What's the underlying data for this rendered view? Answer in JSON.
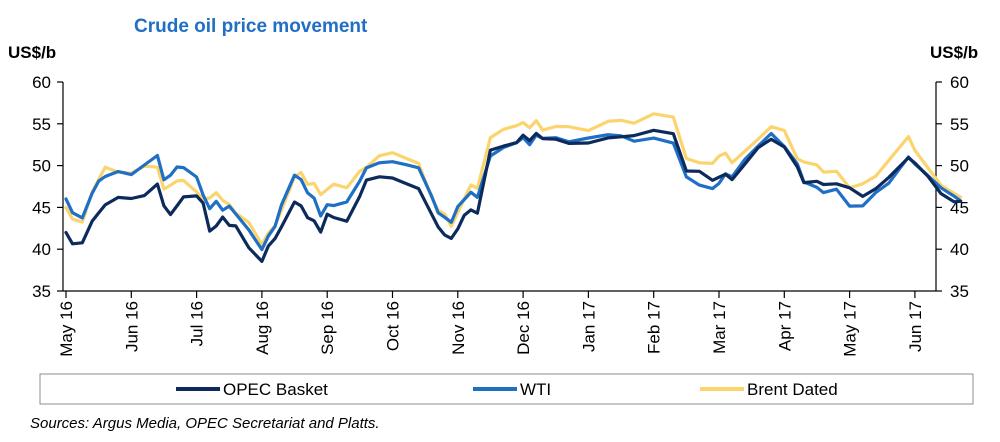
{
  "chart_data": {
    "type": "line",
    "title": "Crude oil price movement",
    "ylabel_left": "US$/b",
    "ylabel_right": "US$/b",
    "ylim": [
      35,
      60
    ],
    "yticks": [
      35,
      40,
      45,
      50,
      55,
      60
    ],
    "grid": false,
    "legend_position": "bottom",
    "source_note": "Sources: Argus Media, OPEC Secretariat and Platts.",
    "x_tick_labels": [
      "May 16",
      "Jun 16",
      "Jul 16",
      "Aug 16",
      "Sep 16",
      "Oct 16",
      "Nov 16",
      "Dec 16",
      "Jan 17",
      "Feb 17",
      "Mar 17",
      "Apr 17",
      "May 17",
      "Jun 17"
    ],
    "x_months_span": [
      0,
      13.7
    ],
    "series": [
      {
        "name": "OPEC Basket",
        "color": "#0d2a5c",
        "x": [
          0,
          0.1,
          0.25,
          0.4,
          0.5,
          0.6,
          0.8,
          1.0,
          1.2,
          1.4,
          1.5,
          1.6,
          1.7,
          1.8,
          2.0,
          2.1,
          2.2,
          2.3,
          2.4,
          2.5,
          2.6,
          2.8,
          3.0,
          3.1,
          3.2,
          3.3,
          3.5,
          3.6,
          3.7,
          3.8,
          3.9,
          4.0,
          4.1,
          4.3,
          4.5,
          4.6,
          4.8,
          5.0,
          5.2,
          5.4,
          5.6,
          5.7,
          5.8,
          5.9,
          6.0,
          6.1,
          6.2,
          6.3,
          6.5,
          6.7,
          6.9,
          7.0,
          7.1,
          7.2,
          7.3,
          7.5,
          7.7,
          8.0,
          8.3,
          8.5,
          8.7,
          9.0,
          9.3,
          9.5,
          9.7,
          9.9,
          10.0,
          10.1,
          10.2,
          10.4,
          10.6,
          10.8,
          11.0,
          11.2,
          11.3,
          11.5,
          11.6,
          11.8,
          12.0,
          12.2,
          12.4,
          12.6,
          12.9,
          13.0,
          13.2,
          13.4,
          13.6,
          13.7
        ],
        "values": [
          42,
          40.5,
          40.5,
          43,
          44,
          45,
          46,
          46,
          46.5,
          48,
          45.5,
          44.5,
          45.5,
          46.5,
          46.5,
          45.5,
          42,
          42.5,
          43.5,
          42.5,
          42.5,
          40,
          38.5,
          40.5,
          41.5,
          43,
          46,
          45.5,
          44,
          43.5,
          42,
          44,
          43.5,
          43,
          46,
          48,
          48.5,
          48.5,
          48,
          47.5,
          44.5,
          43,
          42,
          41.5,
          42.5,
          44,
          44.5,
          44,
          51.5,
          52,
          52.5,
          53.5,
          53,
          54,
          53.5,
          53.5,
          53,
          53,
          53.5,
          53.5,
          53.5,
          54,
          53.5,
          49,
          49,
          48,
          48.5,
          49,
          48.5,
          50.5,
          52.5,
          53.5,
          52.5,
          50,
          48,
          48,
          47.5,
          47.5,
          47,
          46,
          47,
          48.5,
          51,
          50.5,
          49,
          47,
          46,
          46
        ]
      },
      {
        "name": "WTI",
        "color": "#1f6fc5",
        "x": [
          0,
          0.1,
          0.25,
          0.4,
          0.5,
          0.6,
          0.8,
          1.0,
          1.2,
          1.4,
          1.5,
          1.6,
          1.7,
          1.8,
          2.0,
          2.1,
          2.2,
          2.3,
          2.4,
          2.5,
          2.6,
          2.8,
          3.0,
          3.1,
          3.2,
          3.3,
          3.5,
          3.6,
          3.7,
          3.8,
          3.9,
          4.0,
          4.1,
          4.3,
          4.5,
          4.6,
          4.8,
          5.0,
          5.2,
          5.4,
          5.6,
          5.7,
          5.8,
          5.9,
          6.0,
          6.1,
          6.2,
          6.3,
          6.5,
          6.7,
          6.9,
          7.0,
          7.1,
          7.2,
          7.3,
          7.5,
          7.7,
          8.0,
          8.3,
          8.5,
          8.7,
          9.0,
          9.3,
          9.5,
          9.7,
          9.9,
          10.0,
          10.1,
          10.2,
          10.4,
          10.6,
          10.8,
          11.0,
          11.2,
          11.3,
          11.5,
          11.6,
          11.8,
          12.0,
          12.2,
          12.4,
          12.6,
          12.9,
          13.0,
          13.2,
          13.4,
          13.6,
          13.7
        ],
        "values": [
          46,
          44.5,
          44,
          47,
          48.5,
          49,
          49.5,
          49,
          50,
          51,
          48,
          48.5,
          49.5,
          49.5,
          48.5,
          46.5,
          45,
          46,
          45,
          45.5,
          44.5,
          42.5,
          40,
          41.5,
          42.5,
          45,
          48.5,
          48,
          46.5,
          46,
          44,
          45.5,
          45.5,
          46,
          48.5,
          50,
          50.5,
          50.5,
          50,
          49.5,
          46,
          44,
          43.5,
          43,
          45,
          46,
          47,
          46.5,
          51.5,
          52.5,
          53,
          53.5,
          52.5,
          53.5,
          53,
          53,
          52.5,
          53,
          53.5,
          53.5,
          53,
          53.5,
          53,
          49,
          48,
          47.5,
          48,
          49,
          48.5,
          50.5,
          52,
          53.5,
          52,
          50,
          48,
          47.5,
          47,
          47.5,
          45.5,
          45.5,
          47,
          48,
          51,
          50,
          48.5,
          47,
          46,
          45.5
        ]
      },
      {
        "name": "Brent Dated",
        "color": "#fbd46d",
        "x": [
          0,
          0.1,
          0.25,
          0.4,
          0.5,
          0.6,
          0.8,
          1.0,
          1.2,
          1.4,
          1.5,
          1.6,
          1.7,
          1.8,
          2.0,
          2.1,
          2.2,
          2.3,
          2.4,
          2.5,
          2.6,
          2.8,
          3.0,
          3.1,
          3.2,
          3.3,
          3.5,
          3.6,
          3.7,
          3.8,
          3.9,
          4.0,
          4.1,
          4.3,
          4.5,
          4.6,
          4.8,
          5.0,
          5.2,
          5.4,
          5.6,
          5.7,
          5.8,
          5.9,
          6.0,
          6.1,
          6.2,
          6.3,
          6.5,
          6.7,
          6.9,
          7.0,
          7.1,
          7.2,
          7.3,
          7.5,
          7.7,
          8.0,
          8.3,
          8.5,
          8.7,
          9.0,
          9.3,
          9.5,
          9.7,
          9.9,
          10.0,
          10.1,
          10.2,
          10.4,
          10.6,
          10.8,
          11.0,
          11.2,
          11.3,
          11.5,
          11.6,
          11.8,
          12.0,
          12.2,
          12.4,
          12.6,
          12.9,
          13.0,
          13.2,
          13.4,
          13.6,
          13.7
        ],
        "values": [
          45,
          43.5,
          43,
          46.5,
          48,
          49.5,
          49,
          49,
          50,
          50,
          47.5,
          48,
          48.5,
          48.5,
          47,
          46,
          46,
          46.5,
          45.5,
          45,
          44,
          43,
          40.5,
          42,
          43,
          45,
          49,
          49.5,
          48,
          48,
          46.5,
          47,
          47.5,
          47,
          49,
          49.5,
          51,
          51.5,
          51,
          50.5,
          46.5,
          45,
          44.5,
          43,
          44.5,
          46,
          47.5,
          47,
          53,
          54,
          54.5,
          55,
          54.5,
          55.5,
          54.5,
          55,
          55,
          54.5,
          55.5,
          55.5,
          55,
          56,
          55.5,
          50.5,
          50,
          50,
          51,
          51.5,
          50.5,
          52,
          53.5,
          55,
          54.5,
          51,
          50.5,
          50,
          49,
          49,
          47,
          47.5,
          48.5,
          50.5,
          53.5,
          52,
          50,
          48,
          47,
          46.5
        ]
      }
    ]
  }
}
